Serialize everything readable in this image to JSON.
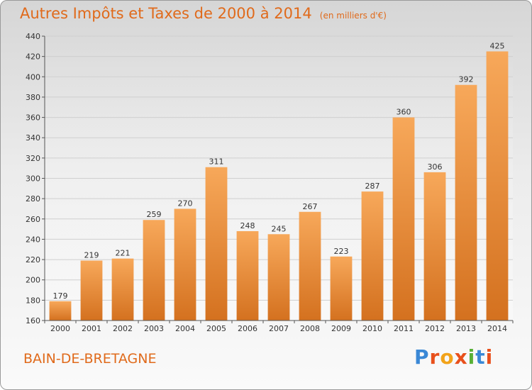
{
  "header": {
    "title": "Autres Impôts et Taxes de 2000 à 2014",
    "unit": "(en milliers d'€)"
  },
  "footer": {
    "commune": "BAIN-DE-BRETAGNE",
    "logo": [
      "P",
      "r",
      "o",
      "x",
      "i",
      "t",
      "i"
    ]
  },
  "colors": {
    "bar_light": "#f7a85a",
    "bar_dark": "#d4711f",
    "title": "#e06a1b",
    "grid": "#cfcfcf"
  },
  "chart_data": {
    "type": "bar",
    "title": "Autres Impôts et Taxes de 2000 à 2014",
    "subtitle": "(en milliers d'€)",
    "xlabel": "",
    "ylabel": "",
    "categories": [
      "2000",
      "2001",
      "2002",
      "2003",
      "2004",
      "2005",
      "2006",
      "2007",
      "2008",
      "2009",
      "2010",
      "2011",
      "2012",
      "2013",
      "2014"
    ],
    "values": [
      179,
      219,
      221,
      259,
      270,
      311,
      248,
      245,
      267,
      223,
      287,
      360,
      306,
      392,
      425
    ],
    "ylim": [
      160,
      440
    ],
    "yticks": [
      160,
      180,
      200,
      220,
      240,
      260,
      280,
      300,
      320,
      340,
      360,
      380,
      400,
      420,
      440
    ],
    "grid": true,
    "data_labels": true
  }
}
